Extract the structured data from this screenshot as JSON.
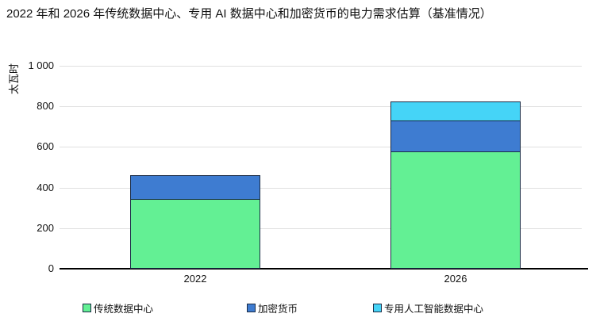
{
  "title": "2022 年和 2026 年传统数据中心、专用 AI 数据中心和加密货币的电力需求估算（基准情况）",
  "chart_data": {
    "type": "bar",
    "stacked": true,
    "title": "2022 年和 2026 年传统数据中心、专用 AI 数据中心和加密货币的电力需求估算（基准情况）",
    "ylabel": "太瓦时",
    "xlabel": "",
    "categories": [
      "2022",
      "2026"
    ],
    "series": [
      {
        "name": "传统数据中心",
        "color": "#63f094",
        "values": [
          345,
          580
        ]
      },
      {
        "name": "加密货币",
        "color": "#3e7cd1",
        "values": [
          115,
          150
        ]
      },
      {
        "name": "专用人工智能数据中心",
        "color": "#45d4f7",
        "values": [
          0,
          95
        ]
      }
    ],
    "totals": [
      460,
      825
    ],
    "ylim": [
      0,
      1000
    ],
    "yticks": [
      0,
      200,
      400,
      600,
      800,
      1000
    ],
    "ytick_labels": [
      "0",
      "200",
      "400",
      "600",
      "800",
      "1 000"
    ],
    "grid": true,
    "legend_position": "bottom",
    "colors": {
      "segment_border": "#1a2b45",
      "gridline": "#e0e0e0",
      "axis": "#000000",
      "background": "#ffffff"
    }
  }
}
